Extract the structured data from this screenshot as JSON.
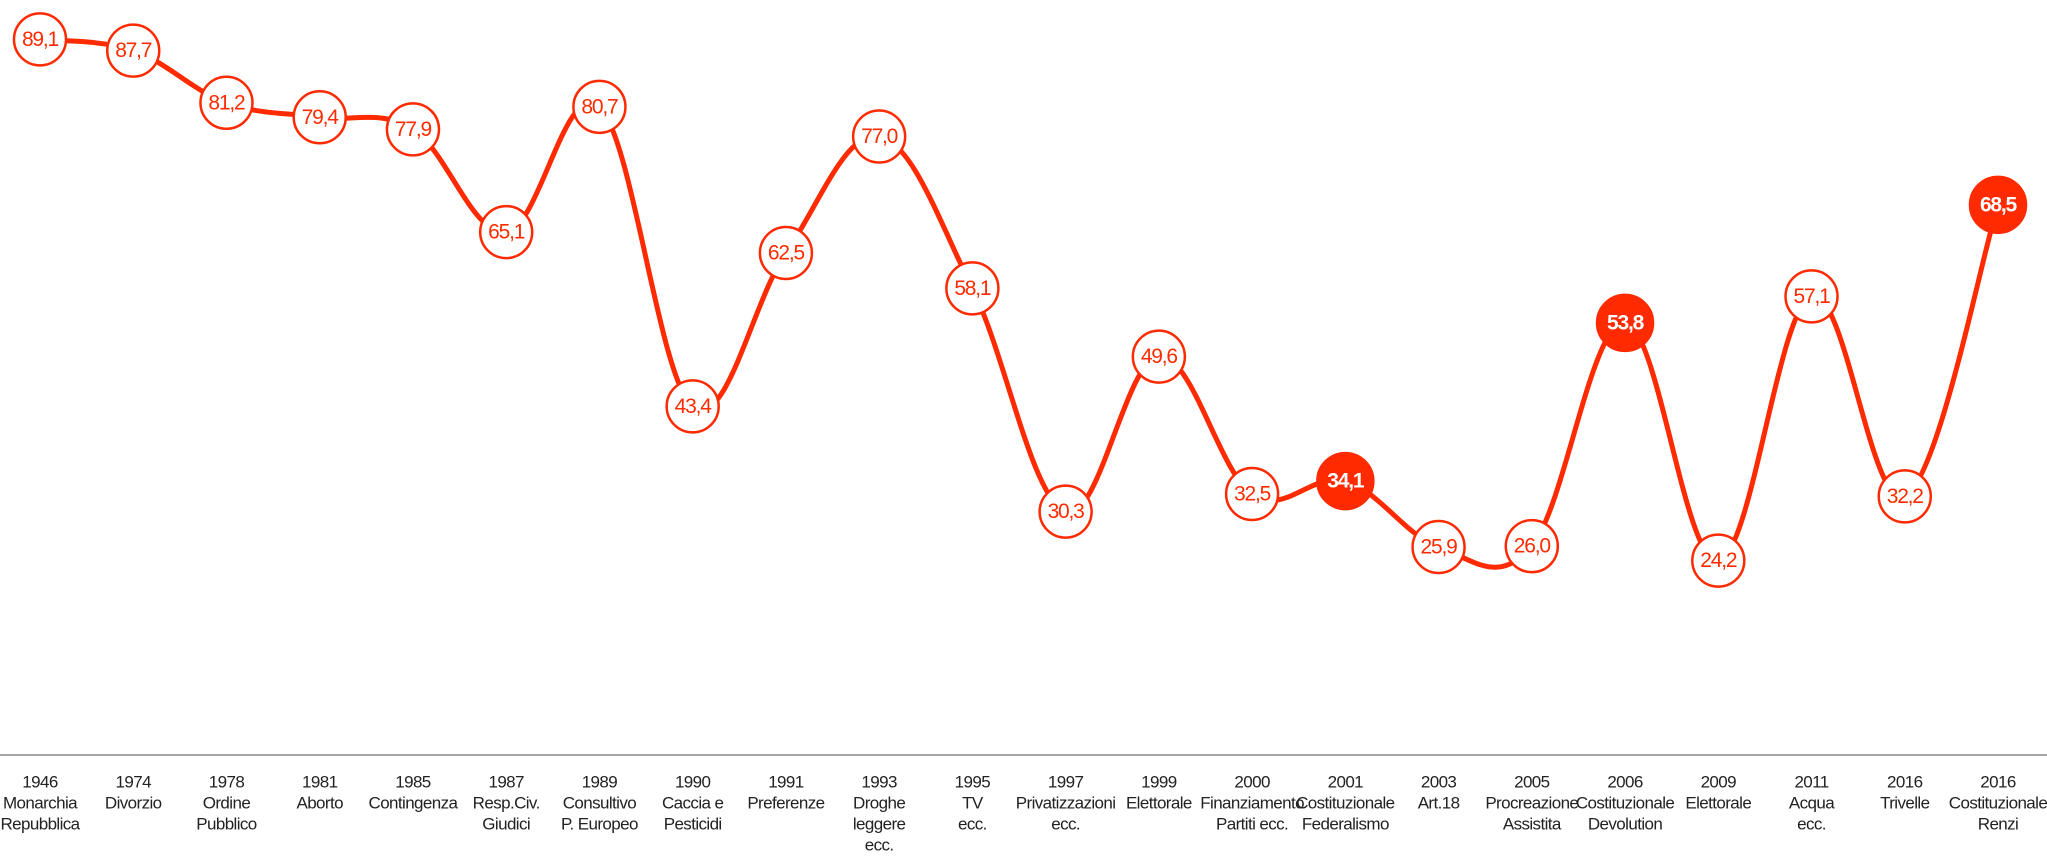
{
  "chart_data": {
    "type": "line",
    "categories": [
      [
        "1946",
        "Monarchia",
        "Repubblica"
      ],
      [
        "1974",
        "Divorzio"
      ],
      [
        "1978",
        "Ordine",
        "Pubblico"
      ],
      [
        "1981",
        "Aborto"
      ],
      [
        "1985",
        "Contingenza"
      ],
      [
        "1987",
        "Resp.Civ.",
        "Giudici"
      ],
      [
        "1989",
        "Consultivo",
        "P. Europeo"
      ],
      [
        "1990",
        "Caccia e",
        "Pesticidi"
      ],
      [
        "1991",
        "Preferenze"
      ],
      [
        "1993",
        "Droghe",
        "leggere",
        "ecc."
      ],
      [
        "1995",
        "TV",
        "ecc."
      ],
      [
        "1997",
        "Privatizzazioni",
        "ecc."
      ],
      [
        "1999",
        "Elettorale"
      ],
      [
        "2000",
        "Finanziamento",
        "Partiti ecc."
      ],
      [
        "2001",
        "Costituzionale",
        "Federalismo"
      ],
      [
        "2003",
        "Art.18"
      ],
      [
        "2005",
        "Procreazione",
        "Assistita"
      ],
      [
        "2006",
        "Costituzionale",
        "Devolution"
      ],
      [
        "2009",
        "Elettorale"
      ],
      [
        "2011",
        "Acqua",
        "ecc."
      ],
      [
        "2016",
        "Trivelle"
      ],
      [
        "2016",
        "Costituzionale",
        "Renzi"
      ]
    ],
    "series": [
      {
        "color": "#ff2a00",
        "values": [
          89.1,
          87.7,
          81.2,
          79.4,
          77.9,
          65.1,
          80.7,
          43.4,
          62.5,
          77.0,
          58.1,
          30.3,
          49.6,
          32.5,
          34.1,
          25.9,
          26.0,
          53.8,
          24.2,
          57.1,
          32.2,
          68.5
        ],
        "value_labels": [
          "89,1",
          "87,7",
          "81,2",
          "79,4",
          "77,9",
          "65,1",
          "80,7",
          "43,4",
          "62,5",
          "77,0",
          "58,1",
          "30,3",
          "49,6",
          "32,5",
          "34,1",
          "25,9",
          "26,0",
          "53,8",
          "24,2",
          "57,1",
          "32,2",
          "68,5"
        ],
        "marker_fill": [
          "#ffffff",
          "#ffffff",
          "#ffffff",
          "#ffffff",
          "#ffffff",
          "#ffffff",
          "#ffffff",
          "#ffffff",
          "#ffffff",
          "#ffffff",
          "#ffffff",
          "#ffffff",
          "#ffffff",
          "#ffffff",
          "#ff2a00",
          "#ffffff",
          "#ffffff",
          "#ff2a00",
          "#ffffff",
          "#ffffff",
          "#ffffff",
          "#ff2a00"
        ]
      }
    ],
    "ylim": [
      0,
      94
    ]
  }
}
